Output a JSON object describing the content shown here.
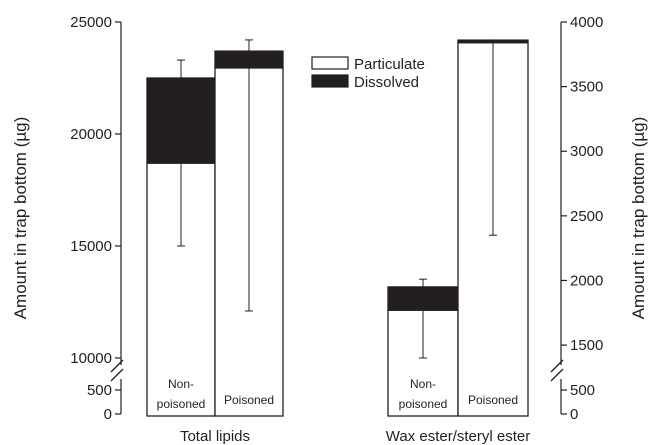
{
  "chart_data": {
    "type": "bar",
    "stacked": true,
    "stack_order": [
      "Particulate",
      "Dissolved"
    ],
    "legend": {
      "placement": "top-center",
      "entries": [
        {
          "label": "Particulate",
          "color": "#ffffff"
        },
        {
          "label": "Dissolved",
          "color": "#231f20"
        }
      ]
    },
    "grid": false,
    "ylabel_left": "Amount in trap bottom (µg)",
    "ylabel_right": "Amount in trap bottom (µg)",
    "left_axis": {
      "broken": true,
      "lower_segment": {
        "range": [
          0,
          500
        ],
        "ticks": [
          0,
          500
        ]
      },
      "upper_segment": {
        "range": [
          10000,
          25000
        ],
        "ticks": [
          10000,
          15000,
          20000,
          25000
        ]
      }
    },
    "right_axis": {
      "broken": true,
      "lower_segment": {
        "range": [
          0,
          500
        ],
        "ticks": [
          0,
          500
        ]
      },
      "upper_segment": {
        "range": [
          1400,
          4000
        ],
        "ticks": [
          1500,
          2000,
          2500,
          3000,
          3500,
          4000
        ]
      }
    },
    "groups": [
      {
        "label": "Total lipids",
        "axis": "left",
        "bars": [
          {
            "label": "Non-\npoisoned",
            "particulate": 18700,
            "dissolved": 3800,
            "error_high": 23300,
            "error_low": 15000
          },
          {
            "label": "Poisoned",
            "particulate": 22950,
            "dissolved": 750,
            "error_high": 24200,
            "error_low": 12100
          }
        ]
      },
      {
        "label": "Wax ester/steryl ester",
        "axis": "right",
        "bars": [
          {
            "label": "Non-\npoisoned",
            "particulate": 1770,
            "dissolved": 180,
            "error_high": 2010,
            "error_low": 1400
          },
          {
            "label": "Poisoned",
            "particulate": 3840,
            "dissolved": 20,
            "error_high": 3860,
            "error_low": 2350
          }
        ]
      }
    ]
  }
}
